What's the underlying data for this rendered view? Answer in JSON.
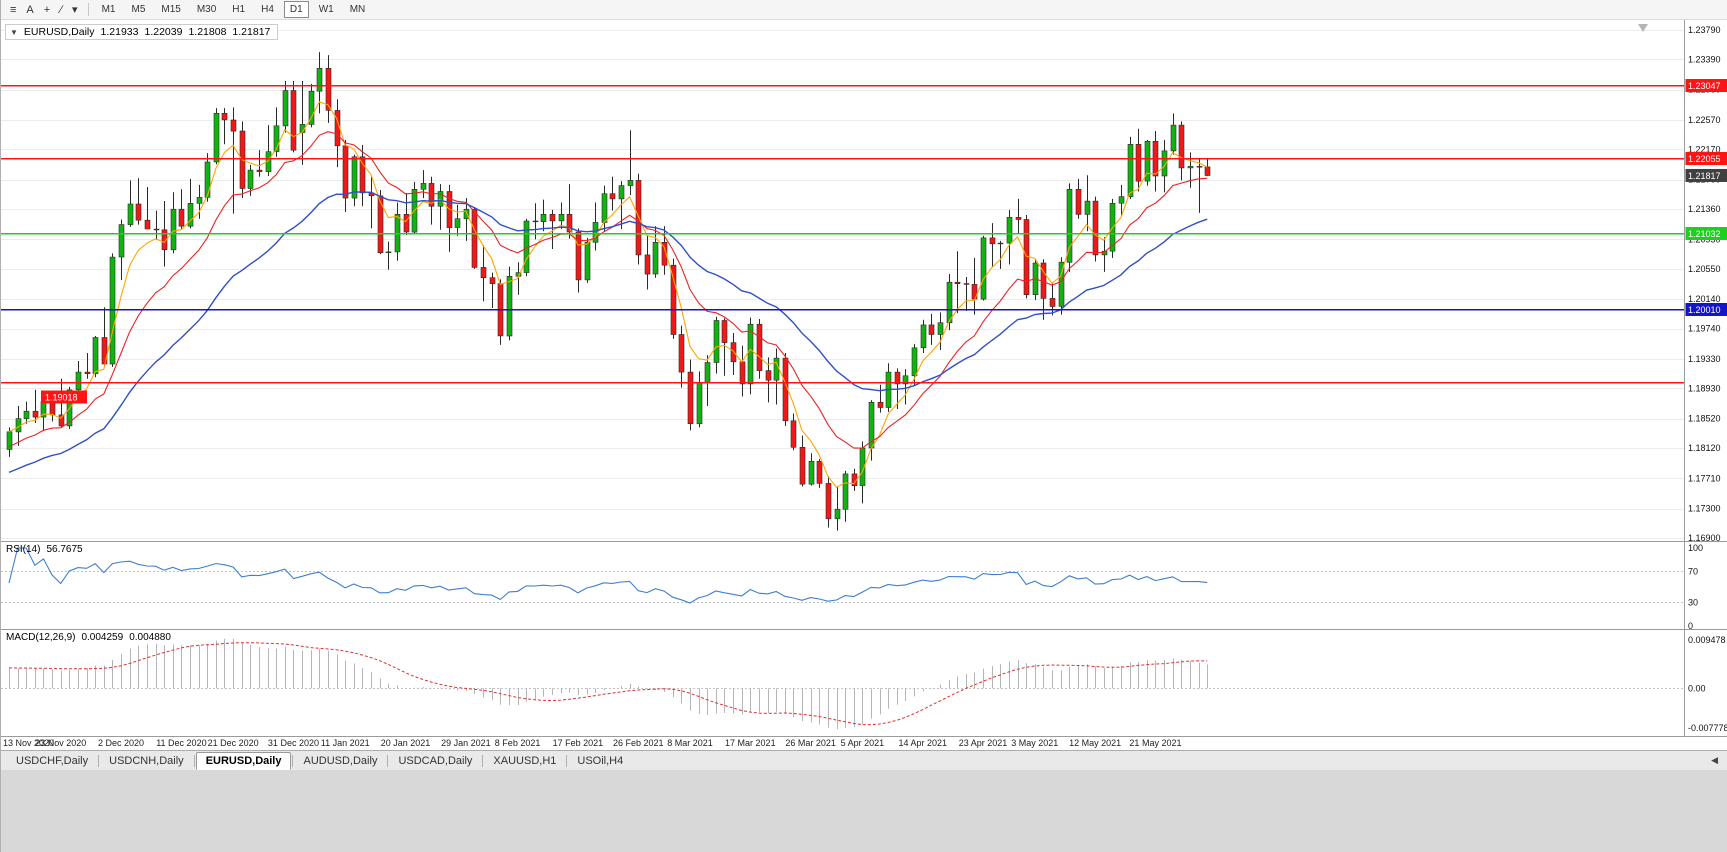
{
  "theme": {
    "grid": "#ececec",
    "axis_text": "#111111",
    "separator": "#9a9a9a",
    "wick": "#2a2a2a",
    "candle_outline": "#2a2a2a",
    "bull": "#0fb40f",
    "bear": "#f21818",
    "rsi_line": "#3f7fce",
    "dashed_grid": "#c4c4c4",
    "macd_hist": "#b5b5b5",
    "macd_signal": "#e03030"
  },
  "toolbar": {
    "tools": [
      {
        "name": "menu-icon",
        "glyph": "≡"
      },
      {
        "name": "cursor-tool-button",
        "glyph": "A"
      },
      {
        "name": "crosshair-tool-button",
        "glyph": "+"
      },
      {
        "name": "draw-tool-button",
        "glyph": "∕"
      },
      {
        "name": "dropdown-caret-icon",
        "glyph": "▾"
      }
    ],
    "timeframes": [
      {
        "label": "M1",
        "active": false
      },
      {
        "label": "M5",
        "active": false
      },
      {
        "label": "M15",
        "active": false
      },
      {
        "label": "M30",
        "active": false
      },
      {
        "label": "H1",
        "active": false
      },
      {
        "label": "H4",
        "active": false
      },
      {
        "label": "D1",
        "active": true
      },
      {
        "label": "W1",
        "active": false
      },
      {
        "label": "MN",
        "active": false
      }
    ]
  },
  "chart": {
    "symbol_header": {
      "collapse_glyph": "▼",
      "symbol": "EURUSD,Daily",
      "open": "1.21933",
      "high": "1.22039",
      "low": "1.21808",
      "close": "1.21817"
    },
    "price_axis": [
      "1.23790",
      "1.23390",
      "1.22980",
      "1.22570",
      "1.22170",
      "1.21760",
      "1.21360",
      "1.20950",
      "1.20550",
      "1.20140",
      "1.19740",
      "1.19330",
      "1.18930",
      "1.18520",
      "1.18120",
      "1.17710",
      "1.17300",
      "1.16900"
    ],
    "levels": [
      {
        "price": 1.23047,
        "label": "1.23047",
        "color": "#ff1414",
        "tag_side": "right"
      },
      {
        "price": 1.22055,
        "label": "1.22055",
        "color": "#ff1414",
        "tag_side": "right"
      },
      {
        "price": 1.21032,
        "label": "1.21032",
        "color": "#1fcf1f",
        "tag_side": "right"
      },
      {
        "price": 1.2001,
        "label": "1.20010",
        "color": "#1414c8",
        "tag_side": "right"
      },
      {
        "price": 1.19018,
        "label": "1.19018",
        "color": "#ff1414",
        "tag_side": "left"
      }
    ],
    "current_price": {
      "value": 1.21817,
      "label": "1.21817",
      "color": "#404040"
    }
  },
  "rsi": {
    "name": "RSI(14)",
    "value": "56.7675",
    "axis": [
      {
        "label": "100",
        "value": 100
      },
      {
        "label": "70",
        "value": 70
      },
      {
        "label": "30",
        "value": 30
      },
      {
        "label": "0",
        "value": 0
      }
    ],
    "dashed_levels": [
      70,
      30
    ]
  },
  "macd": {
    "name": "MACD(12,26,9)",
    "value_main": "0.004259",
    "value_signal": "0.004880",
    "axis": [
      {
        "label": "0.009478",
        "value": 0.009478
      },
      {
        "label": "0.00",
        "value": 0
      },
      {
        "label": "-0.007778",
        "value": -0.007778
      }
    ]
  },
  "dates": {
    "labels": [
      {
        "text": "13 Nov 2020",
        "index": 0
      },
      {
        "text": "23 Nov 2020",
        "index": 6
      },
      {
        "text": "2 Dec 2020",
        "index": 13
      },
      {
        "text": "11 Dec 2020",
        "index": 20
      },
      {
        "text": "21 Dec 2020",
        "index": 26
      },
      {
        "text": "31 Dec 2020",
        "index": 33
      },
      {
        "text": "11 Jan 2021",
        "index": 39
      },
      {
        "text": "20 Jan 2021",
        "index": 46
      },
      {
        "text": "29 Jan 2021",
        "index": 53
      },
      {
        "text": "8 Feb 2021",
        "index": 59
      },
      {
        "text": "17 Feb 2021",
        "index": 66
      },
      {
        "text": "26 Feb 2021",
        "index": 73
      },
      {
        "text": "8 Mar 2021",
        "index": 79
      },
      {
        "text": "17 Mar 2021",
        "index": 86
      },
      {
        "text": "26 Mar 2021",
        "index": 93
      },
      {
        "text": "5 Apr 2021",
        "index": 99
      },
      {
        "text": "14 Apr 2021",
        "index": 106
      },
      {
        "text": "23 Apr 2021",
        "index": 113
      },
      {
        "text": "3 May 2021",
        "index": 119
      },
      {
        "text": "12 May 2021",
        "index": 126
      },
      {
        "text": "21 May 2021",
        "index": 133
      }
    ]
  },
  "tabs_bar": {
    "scroll_glyph": "◀",
    "tabs": [
      {
        "label": "USDCHF,Daily",
        "active": false
      },
      {
        "label": "USDCNH,Daily",
        "active": false
      },
      {
        "label": "EURUSD,Daily",
        "active": true
      },
      {
        "label": "AUDUSD,Daily",
        "active": false
      },
      {
        "label": "USDCAD,Daily",
        "active": false
      },
      {
        "label": "XAUUSD,H1",
        "active": false
      },
      {
        "label": "USOil,H4",
        "active": false
      }
    ]
  },
  "chart_data": {
    "type": "candlestick",
    "symbol": "EURUSD",
    "timeframe": "Daily",
    "y_axis_range": [
      1.169,
      1.2379
    ],
    "last_bar": {
      "open": 1.21933,
      "high": 1.22039,
      "low": 1.21808,
      "close": 1.21817
    },
    "moving_averages": [
      {
        "period": 5,
        "color": "#ffa500",
        "seed_offset": 0,
        "width": 1.1
      },
      {
        "period": 13,
        "color": "#ee2222",
        "seed_offset": -0.002,
        "width": 1.1
      },
      {
        "period": 30,
        "color": "#3050c8",
        "seed_offset": -0.0055,
        "width": 1.4
      }
    ],
    "rsi": {
      "period": 14,
      "last": 56.7675
    },
    "macd": {
      "fast": 12,
      "slow": 26,
      "signal": 9,
      "last_main": 0.004259,
      "last_signal": 0.00488,
      "range": [
        -0.007778,
        0.009478
      ]
    },
    "ohlc": [
      [
        1.181,
        1.184,
        1.18,
        1.1834
      ],
      [
        1.1834,
        1.1869,
        1.1815,
        1.1852
      ],
      [
        1.1852,
        1.1875,
        1.1845,
        1.1862
      ],
      [
        1.1862,
        1.1891,
        1.1846,
        1.1854
      ],
      [
        1.1854,
        1.1885,
        1.1835,
        1.1875
      ],
      [
        1.1875,
        1.189,
        1.1848,
        1.1857
      ],
      [
        1.1857,
        1.1906,
        1.1839,
        1.1842
      ],
      [
        1.1842,
        1.1895,
        1.1838,
        1.1891
      ],
      [
        1.1891,
        1.193,
        1.1881,
        1.1915
      ],
      [
        1.1915,
        1.1941,
        1.1906,
        1.1913
      ],
      [
        1.1913,
        1.1964,
        1.1908,
        1.1962
      ],
      [
        1.1962,
        1.2003,
        1.1924,
        1.1926
      ],
      [
        1.1926,
        1.2076,
        1.1922,
        1.2071
      ],
      [
        1.2071,
        1.2122,
        1.204,
        1.2115
      ],
      [
        1.2115,
        1.2175,
        1.2112,
        1.2143
      ],
      [
        1.2143,
        1.2178,
        1.2115,
        1.2121
      ],
      [
        1.2121,
        1.2166,
        1.2109,
        1.2109
      ],
      [
        1.2109,
        1.2134,
        1.2094,
        1.2108
      ],
      [
        1.2108,
        1.2147,
        1.2058,
        1.2081
      ],
      [
        1.2081,
        1.2159,
        1.2076,
        1.2136
      ],
      [
        1.2136,
        1.2163,
        1.2109,
        1.2113
      ],
      [
        1.2113,
        1.2177,
        1.211,
        1.2144
      ],
      [
        1.2144,
        1.2169,
        1.2123,
        1.2152
      ],
      [
        1.2152,
        1.2212,
        1.2146,
        1.22
      ],
      [
        1.22,
        1.2273,
        1.2197,
        1.2266
      ],
      [
        1.2266,
        1.2273,
        1.2224,
        1.2257
      ],
      [
        1.2257,
        1.2274,
        1.213,
        1.2242
      ],
      [
        1.2242,
        1.2255,
        1.2151,
        1.2164
      ],
      [
        1.2164,
        1.2196,
        1.2154,
        1.2189
      ],
      [
        1.2189,
        1.2216,
        1.218,
        1.2187
      ],
      [
        1.2187,
        1.225,
        1.2181,
        1.2214
      ],
      [
        1.2214,
        1.2274,
        1.2207,
        1.2249
      ],
      [
        1.2249,
        1.231,
        1.224,
        1.2297
      ],
      [
        1.2297,
        1.231,
        1.2213,
        1.2216
      ],
      [
        1.224,
        1.231,
        1.2196,
        1.2251
      ],
      [
        1.2251,
        1.2306,
        1.2247,
        1.2296
      ],
      [
        1.2296,
        1.2349,
        1.2266,
        1.2327
      ],
      [
        1.2327,
        1.2345,
        1.2253,
        1.227
      ],
      [
        1.227,
        1.2285,
        1.2193,
        1.2222
      ],
      [
        1.2222,
        1.223,
        1.2132,
        1.2151
      ],
      [
        1.2151,
        1.221,
        1.214,
        1.2207
      ],
      [
        1.2207,
        1.2223,
        1.214,
        1.2158
      ],
      [
        1.2158,
        1.218,
        1.211,
        1.2154
      ],
      [
        1.2154,
        1.2162,
        1.2075,
        1.2077
      ],
      [
        1.2077,
        1.2092,
        1.2054,
        1.2078
      ],
      [
        1.2078,
        1.2145,
        1.2066,
        1.2129
      ],
      [
        1.2129,
        1.2158,
        1.2101,
        1.2105
      ],
      [
        1.2105,
        1.2173,
        1.2103,
        1.2163
      ],
      [
        1.2163,
        1.2189,
        1.2151,
        1.2171
      ],
      [
        1.2171,
        1.218,
        1.2115,
        1.214
      ],
      [
        1.214,
        1.217,
        1.2108,
        1.216
      ],
      [
        1.216,
        1.2169,
        1.2078,
        1.2111
      ],
      [
        1.2111,
        1.2142,
        1.21,
        1.2123
      ],
      [
        1.2123,
        1.2151,
        1.2093,
        1.2136
      ],
      [
        1.2136,
        1.2137,
        1.2055,
        1.2057
      ],
      [
        1.2057,
        1.2087,
        1.2011,
        1.2043
      ],
      [
        1.2043,
        1.205,
        1.2002,
        1.2035
      ],
      [
        1.2035,
        1.2041,
        1.1952,
        1.1964
      ],
      [
        1.1964,
        1.2058,
        1.1958,
        1.2045
      ],
      [
        1.2045,
        1.2064,
        1.202,
        1.205
      ],
      [
        1.205,
        1.2123,
        1.2045,
        1.212
      ],
      [
        1.212,
        1.2144,
        1.2095,
        1.2119
      ],
      [
        1.2119,
        1.2149,
        1.2106,
        1.2129
      ],
      [
        1.2129,
        1.2135,
        1.2082,
        1.212
      ],
      [
        1.212,
        1.2145,
        1.2109,
        1.2129
      ],
      [
        1.2129,
        1.217,
        1.2096,
        1.2105
      ],
      [
        1.2105,
        1.211,
        1.2023,
        1.204
      ],
      [
        1.204,
        1.2097,
        1.2036,
        1.2091
      ],
      [
        1.2091,
        1.2145,
        1.208,
        1.2118
      ],
      [
        1.2118,
        1.2168,
        1.2105,
        1.2157
      ],
      [
        1.2157,
        1.218,
        1.2134,
        1.215
      ],
      [
        1.215,
        1.2174,
        1.2109,
        1.2168
      ],
      [
        1.2168,
        1.2243,
        1.2155,
        1.2175
      ],
      [
        1.2175,
        1.2184,
        1.2061,
        1.2074
      ],
      [
        1.2074,
        1.2101,
        1.2027,
        1.2048
      ],
      [
        1.2048,
        1.2113,
        1.2043,
        1.2091
      ],
      [
        1.2091,
        1.2113,
        1.2047,
        1.206
      ],
      [
        1.206,
        1.2069,
        1.196,
        1.1966
      ],
      [
        1.1966,
        1.1978,
        1.1894,
        1.1915
      ],
      [
        1.1915,
        1.1932,
        1.1836,
        1.1845
      ],
      [
        1.1845,
        1.1916,
        1.184,
        1.19
      ],
      [
        1.19,
        1.1938,
        1.1869,
        1.1928
      ],
      [
        1.1928,
        1.199,
        1.1913,
        1.1985
      ],
      [
        1.1985,
        1.1988,
        1.191,
        1.1955
      ],
      [
        1.1955,
        1.1968,
        1.1911,
        1.1929
      ],
      [
        1.1929,
        1.1951,
        1.1882,
        1.1899
      ],
      [
        1.1899,
        1.1989,
        1.1885,
        1.198
      ],
      [
        1.198,
        1.1987,
        1.1906,
        1.1917
      ],
      [
        1.1917,
        1.1935,
        1.1874,
        1.1904
      ],
      [
        1.1904,
        1.1947,
        1.1871,
        1.1934
      ],
      [
        1.1934,
        1.1941,
        1.1842,
        1.1849
      ],
      [
        1.1849,
        1.1859,
        1.1809,
        1.1813
      ],
      [
        1.1813,
        1.1829,
        1.176,
        1.1763
      ],
      [
        1.1763,
        1.1805,
        1.1761,
        1.1794
      ],
      [
        1.1794,
        1.1797,
        1.1758,
        1.1764
      ],
      [
        1.1764,
        1.1774,
        1.1704,
        1.1716
      ],
      [
        1.1716,
        1.176,
        1.17,
        1.1729
      ],
      [
        1.1729,
        1.1781,
        1.1712,
        1.1777
      ],
      [
        1.1777,
        1.1784,
        1.1754,
        1.1761
      ],
      [
        1.1761,
        1.1821,
        1.1737,
        1.1812
      ],
      [
        1.1812,
        1.1877,
        1.1795,
        1.1874
      ],
      [
        1.1874,
        1.1898,
        1.186,
        1.1867
      ],
      [
        1.1867,
        1.1927,
        1.1861,
        1.1915
      ],
      [
        1.1915,
        1.192,
        1.1865,
        1.1899
      ],
      [
        1.1899,
        1.1919,
        1.1871,
        1.191
      ],
      [
        1.191,
        1.1953,
        1.1896,
        1.1948
      ],
      [
        1.1948,
        1.1986,
        1.1941,
        1.1979
      ],
      [
        1.1979,
        1.1994,
        1.1952,
        1.1966
      ],
      [
        1.1966,
        1.1996,
        1.1945,
        1.1982
      ],
      [
        1.1982,
        1.2048,
        1.1972,
        1.2037
      ],
      [
        1.2037,
        1.2079,
        1.1995,
        1.2035
      ],
      [
        1.2035,
        1.2044,
        1.1998,
        1.2034
      ],
      [
        1.2034,
        1.207,
        1.1993,
        1.2014
      ],
      [
        1.2014,
        1.21,
        1.2012,
        1.2097
      ],
      [
        1.2097,
        1.2117,
        1.2057,
        1.2089
      ],
      [
        1.2089,
        1.2093,
        1.2055,
        1.209
      ],
      [
        1.209,
        1.2135,
        1.2061,
        1.2125
      ],
      [
        1.2125,
        1.215,
        1.2102,
        1.2122
      ],
      [
        1.2122,
        1.2128,
        1.2015,
        1.202
      ],
      [
        1.202,
        1.2067,
        1.2013,
        1.2063
      ],
      [
        1.2063,
        1.2068,
        1.1986,
        1.2015
      ],
      [
        1.2015,
        1.2035,
        1.1992,
        1.2004
      ],
      [
        1.2004,
        1.2071,
        1.1993,
        1.2064
      ],
      [
        1.2064,
        1.2171,
        1.2051,
        1.2163
      ],
      [
        1.2163,
        1.2177,
        1.2123,
        1.2129
      ],
      [
        1.2129,
        1.2182,
        1.2106,
        1.2147
      ],
      [
        1.2147,
        1.2153,
        1.2065,
        1.2074
      ],
      [
        1.2074,
        1.2098,
        1.2051,
        1.2079
      ],
      [
        1.2079,
        1.215,
        1.207,
        1.2144
      ],
      [
        1.2144,
        1.2169,
        1.2126,
        1.2153
      ],
      [
        1.2153,
        1.2234,
        1.215,
        1.2224
      ],
      [
        1.2224,
        1.2245,
        1.216,
        1.2174
      ],
      [
        1.2174,
        1.223,
        1.2168,
        1.2228
      ],
      [
        1.2228,
        1.2242,
        1.216,
        1.2181
      ],
      [
        1.2181,
        1.223,
        1.2159,
        1.2215
      ],
      [
        1.2215,
        1.2266,
        1.221,
        1.225
      ],
      [
        1.225,
        1.2255,
        1.2175,
        1.2192
      ],
      [
        1.2192,
        1.2213,
        1.2165,
        1.2194
      ],
      [
        1.2194,
        1.2205,
        1.2131,
        1.2193
      ],
      [
        1.21933,
        1.22039,
        1.21808,
        1.21817
      ]
    ]
  }
}
